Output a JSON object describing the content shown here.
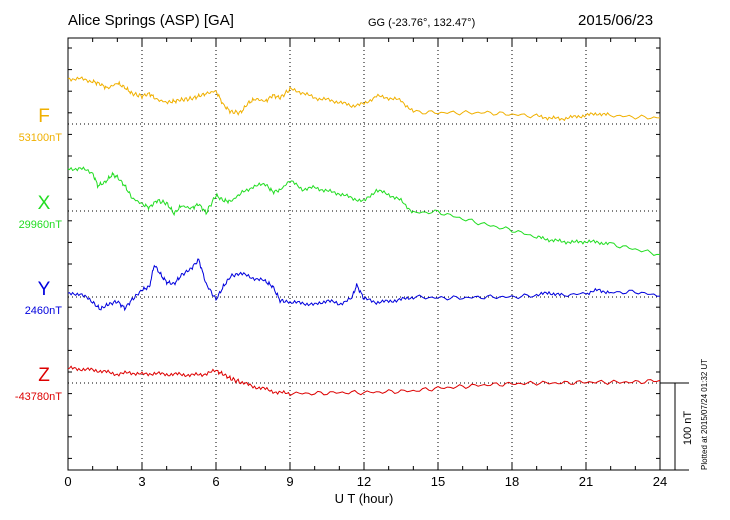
{
  "header": {
    "station": "Alice Springs (ASP)  [GA]",
    "coords": "GG (-23.76°, 132.47°)",
    "date": "2015/06/23"
  },
  "plotted_note": "Plotted at 2015/07/24 01:32 UT",
  "chart_data": {
    "type": "line",
    "xlabel": "U T (hour)",
    "xlim": [
      0,
      24
    ],
    "x_ticks": [
      "0",
      "3",
      "6",
      "9",
      "12",
      "15",
      "18",
      "21",
      "24"
    ],
    "scale_bar": "100 nT",
    "grid": true,
    "series": [
      {
        "name": "F",
        "baseline": "53100nT",
        "color": "#f0b000",
        "x": [
          0,
          0.5,
          1,
          1.3,
          1.6,
          2,
          2.3,
          2.6,
          3,
          3.3,
          3.6,
          4,
          4.3,
          4.6,
          5,
          5.3,
          5.6,
          6,
          6.3,
          6.6,
          7,
          7.3,
          7.6,
          8,
          8.3,
          8.6,
          9,
          9.5,
          10,
          10.5,
          11,
          11.5,
          12,
          12.5,
          13,
          13.5,
          14,
          15,
          16,
          17,
          18,
          19,
          19.5,
          20,
          20.5,
          21,
          21.5,
          22,
          23,
          24
        ],
        "y": [
          52,
          52,
          49,
          46,
          41,
          47,
          42,
          35,
          32,
          35,
          28,
          25,
          26,
          28,
          29,
          32,
          35,
          38,
          22,
          14,
          13,
          24,
          29,
          26,
          33,
          30,
          40,
          36,
          30,
          28,
          25,
          21,
          23,
          32,
          30,
          27,
          14,
          13,
          13,
          13,
          11,
          9,
          7,
          6,
          8,
          10,
          12,
          10,
          8,
          7
        ]
      },
      {
        "name": "X",
        "baseline": "29960nT",
        "color": "#22dd22",
        "x": [
          0,
          0.5,
          1,
          1.2,
          1.5,
          1.8,
          2,
          2.3,
          2.6,
          3,
          3.3,
          3.6,
          4,
          4.3,
          4.6,
          5,
          5.3,
          5.6,
          6,
          6.3,
          6.6,
          7,
          7.5,
          8,
          8.3,
          8.6,
          9,
          9.5,
          10,
          10.5,
          11,
          11.5,
          12,
          12.5,
          13,
          13.5,
          14,
          15,
          16,
          17,
          18,
          19,
          19.5,
          20,
          20.5,
          21,
          21.5,
          22,
          23,
          24
        ],
        "y": [
          48,
          49,
          44,
          29,
          33,
          42,
          39,
          29,
          15,
          8,
          4,
          12,
          9,
          -3,
          6,
          3,
          8,
          -2,
          18,
          12,
          11,
          20,
          28,
          31,
          22,
          24,
          35,
          25,
          27,
          23,
          20,
          15,
          11,
          24,
          19,
          12,
          -2,
          -1,
          -9,
          -16,
          -22,
          -30,
          -33,
          -35,
          -36,
          -35,
          -36,
          -38,
          -44,
          -50
        ]
      },
      {
        "name": "Y",
        "baseline": "2460nT",
        "color": "#0000dd",
        "x": [
          0,
          0.5,
          1,
          1.3,
          1.6,
          2,
          2.3,
          2.6,
          3,
          3.3,
          3.5,
          3.8,
          4,
          4.3,
          4.6,
          5,
          5.3,
          5.6,
          6,
          6.3,
          6.6,
          7,
          7.5,
          8,
          8.3,
          8.6,
          9,
          9.5,
          10,
          10.5,
          11,
          11.5,
          11.7,
          12,
          12.5,
          13,
          13.5,
          14,
          15,
          16,
          17,
          18,
          19,
          19.5,
          20,
          21,
          21.5,
          22,
          23,
          24
        ],
        "y": [
          3,
          4,
          -6,
          -14,
          -9,
          -5,
          -13,
          -3,
          8,
          12,
          37,
          24,
          17,
          15,
          25,
          33,
          43,
          15,
          -3,
          12,
          24,
          27,
          22,
          18,
          12,
          -4,
          -6,
          -7,
          -9,
          -4,
          -8,
          -2,
          14,
          -2,
          -6,
          -5,
          -3,
          0,
          -1,
          -1,
          0,
          0,
          2,
          5,
          2,
          4,
          8,
          5,
          6,
          1
        ]
      },
      {
        "name": "Z",
        "baseline": "-43780nT",
        "color": "#dd0000",
        "x": [
          0,
          0.5,
          1,
          1.5,
          2,
          2.5,
          3,
          3.5,
          4,
          4.5,
          5,
          5.5,
          6,
          6.3,
          6.6,
          7,
          7.5,
          8,
          8.5,
          9,
          10,
          11,
          12,
          13,
          14,
          15,
          16,
          17,
          18,
          19,
          20,
          21,
          22,
          23,
          24
        ],
        "y": [
          17,
          16,
          15,
          13,
          10,
          12,
          10,
          11,
          10,
          10,
          9,
          10,
          14,
          10,
          5,
          1,
          -4,
          -7,
          -11,
          -12,
          -12,
          -11,
          -11,
          -10,
          -9,
          -6,
          -4,
          -2,
          -1,
          0,
          0,
          1,
          1,
          1,
          3
        ]
      }
    ]
  }
}
